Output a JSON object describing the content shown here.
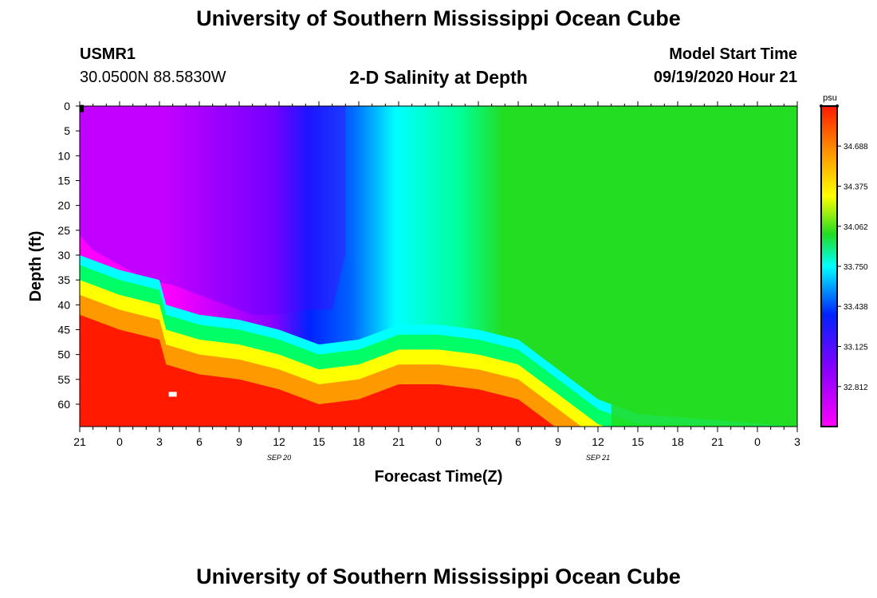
{
  "page": {
    "title_top": "University of Southern Mississippi Ocean Cube",
    "title_bottom": "University of Southern Mississippi Ocean Cube",
    "station_id": "USMR1",
    "station_coords": "30.0500N 88.5830W",
    "chart_title": "2-D Salinity at Depth",
    "model_start_label": "Model Start Time",
    "model_start_value": "09/19/2020 Hour 21"
  },
  "colors": {
    "gradient_stops": [
      "#ff00ff",
      "#8800ff",
      "#0022ff",
      "#00ffff",
      "#22dd22",
      "#ffff00",
      "#ff9900",
      "#ff1a00"
    ],
    "frame": "#000000",
    "marker_black": "#000000",
    "marker_white": "#ffffff"
  },
  "chart_data": {
    "type": "heatmap",
    "title": "2-D Salinity at Depth",
    "xlabel": "Forecast Time(Z)",
    "ylabel": "Depth (ft)",
    "x_tick_labels": [
      "21",
      "0",
      "3",
      "6",
      "9",
      "12",
      "15",
      "18",
      "21",
      "0",
      "3",
      "6",
      "9",
      "12",
      "15",
      "18",
      "21",
      "0",
      "3"
    ],
    "x_range_hours_from_start": [
      0,
      54
    ],
    "date_labels": [
      {
        "label": "SEP 20",
        "hour": 15
      },
      {
        "label": "SEP 21",
        "hour": 39
      }
    ],
    "y_ticks": [
      0,
      5,
      10,
      15,
      20,
      25,
      30,
      35,
      40,
      45,
      50,
      55,
      60
    ],
    "y_range_ft": [
      0,
      64.5
    ],
    "colorbar": {
      "unit": "psu",
      "range": [
        32.5,
        35.0
      ],
      "tick_labels": [
        "34.688",
        "34.375",
        "34.062",
        "33.750",
        "33.438",
        "33.125",
        "32.812"
      ]
    },
    "fresh_layer_bottom_ft": [
      {
        "hour": 0,
        "depth": 26
      },
      {
        "hour": 1,
        "depth": 29
      },
      {
        "hour": 3,
        "depth": 32
      },
      {
        "hour": 5,
        "depth": 35
      },
      {
        "hour": 7,
        "depth": 36
      },
      {
        "hour": 9,
        "depth": 38
      },
      {
        "hour": 11,
        "depth": 40
      },
      {
        "hour": 13,
        "depth": 42
      },
      {
        "hour": 15,
        "depth": 42
      },
      {
        "hour": 17,
        "depth": 41
      },
      {
        "hour": 19,
        "depth": 41
      }
    ],
    "halocline_ft": [
      {
        "hour": 0,
        "depth": 33
      },
      {
        "hour": 3,
        "depth": 36
      },
      {
        "hour": 6,
        "depth": 38
      },
      {
        "hour": 6.5,
        "depth": 43
      },
      {
        "hour": 9,
        "depth": 45
      },
      {
        "hour": 12,
        "depth": 46
      },
      {
        "hour": 15,
        "depth": 48
      },
      {
        "hour": 18,
        "depth": 51
      },
      {
        "hour": 21,
        "depth": 50
      },
      {
        "hour": 24,
        "depth": 47
      },
      {
        "hour": 27,
        "depth": 47
      },
      {
        "hour": 30,
        "depth": 48
      },
      {
        "hour": 33,
        "depth": 50
      },
      {
        "hour": 36,
        "depth": 56
      },
      {
        "hour": 39,
        "depth": 62
      },
      {
        "hour": 42,
        "depth": 65
      }
    ],
    "markers": [
      {
        "hour": 0,
        "depth": 0.5,
        "color": "black"
      },
      {
        "hour": 7,
        "depth": 58,
        "color": "white"
      }
    ]
  }
}
